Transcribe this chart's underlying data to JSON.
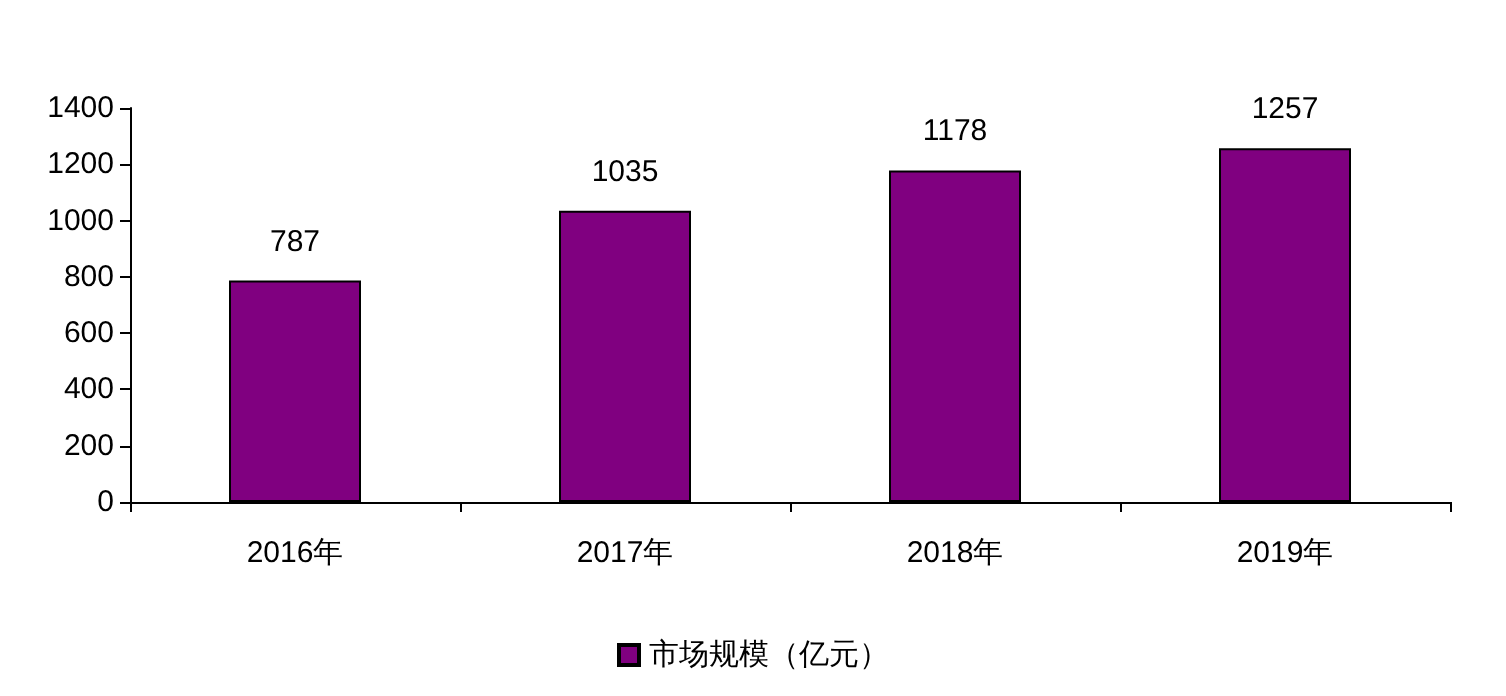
{
  "chart_data": {
    "type": "bar",
    "categories": [
      "2016年",
      "2017年",
      "2018年",
      "2019年"
    ],
    "series": [
      {
        "name": "市场规模（亿元）",
        "color": "#800080",
        "values": [
          787,
          1035,
          1178,
          1257
        ]
      }
    ],
    "ylim": [
      0,
      1400
    ],
    "yticks": [
      0,
      200,
      400,
      600,
      800,
      1000,
      1200,
      1400
    ],
    "grid": false,
    "legend": "bottom",
    "data_labels": true
  }
}
